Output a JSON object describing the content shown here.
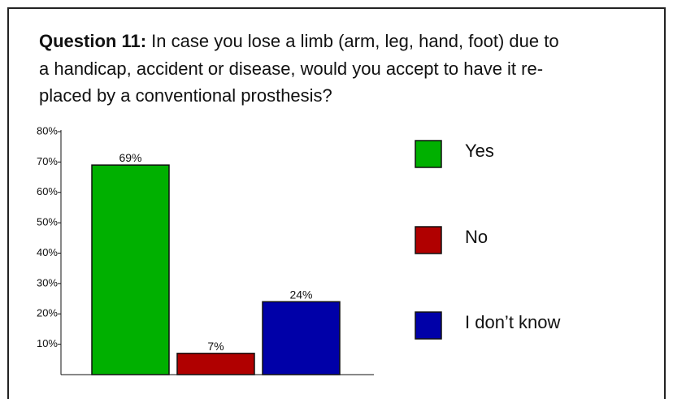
{
  "chart_data": {
    "type": "bar",
    "title_prefix": "Question 11:",
    "title_lines": [
      "In case you lose a limb (arm, leg, hand, foot) due to",
      "a handicap, accident or disease, would you accept to have it re-",
      "placed by a conventional prosthesis?"
    ],
    "categories": [
      "Yes",
      "No",
      "I don’t know"
    ],
    "values": [
      69,
      7,
      24
    ],
    "value_labels": [
      "69%",
      "7%",
      "24%"
    ],
    "colors": [
      "#00b000",
      "#b00000",
      "#0000a8"
    ],
    "ylim": [
      0,
      80
    ],
    "yticks": [
      {
        "value": 10,
        "label": "10%"
      },
      {
        "value": 20,
        "label": "20%"
      },
      {
        "value": 30,
        "label": "30%"
      },
      {
        "value": 40,
        "label": "40%"
      },
      {
        "value": 50,
        "label": "50%"
      },
      {
        "value": 60,
        "label": "60%"
      },
      {
        "value": 70,
        "label": "70%"
      },
      {
        "value": 80,
        "label": "80%"
      }
    ],
    "grid": false,
    "legend": "right"
  }
}
